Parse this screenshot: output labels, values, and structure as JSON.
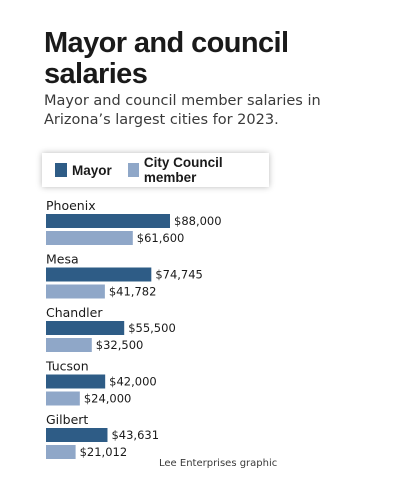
{
  "title": "Mayor and council salaries",
  "subtitle": "Mayor and council member salaries in Arizona’s largest cities for 2023.",
  "credit": "Lee Enterprises graphic",
  "colors": {
    "mayor": "#2e5c86",
    "council": "#8fa7c8"
  },
  "chart_data": {
    "type": "bar",
    "orientation": "horizontal",
    "title": "Mayor and council salaries",
    "subtitle": "Mayor and council member salaries in Arizona’s largest cities for 2023.",
    "categories": [
      "Phoenix",
      "Mesa",
      "Chandler",
      "Tucson",
      "Gilbert"
    ],
    "series": [
      {
        "name": "Mayor",
        "color": "#2e5c86",
        "values": [
          88000,
          74745,
          55500,
          42000,
          43631
        ],
        "labels": [
          "$88,000",
          "$74,745",
          "$55,500",
          "$42,000",
          "$43,631"
        ]
      },
      {
        "name": "City Council member",
        "color": "#8fa7c8",
        "values": [
          61600,
          41782,
          32500,
          24000,
          21012
        ],
        "labels": [
          "$61,600",
          "$41,782",
          "$32,500",
          "$24,000",
          "$21,012"
        ]
      }
    ],
    "xlim": [
      0,
      88000
    ],
    "grid": false,
    "legend": "top-left"
  }
}
